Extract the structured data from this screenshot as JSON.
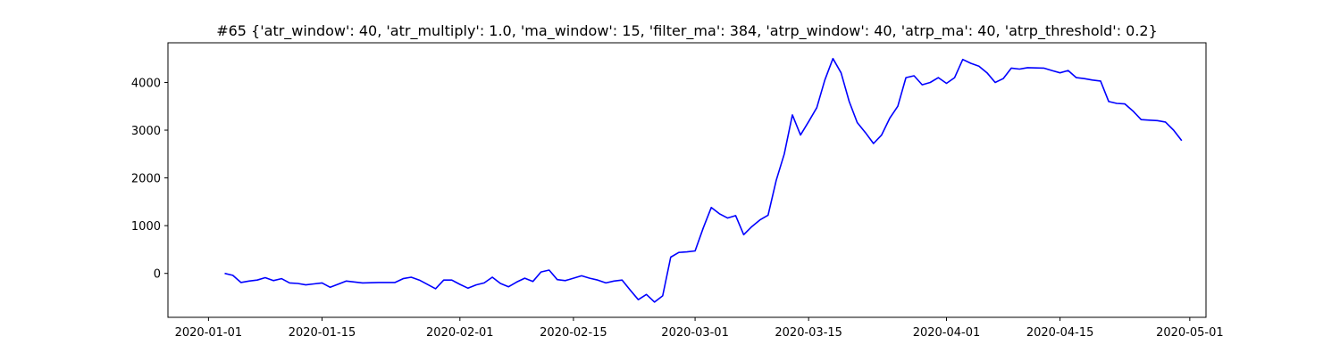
{
  "chart_data": {
    "type": "line",
    "title": "#65 {'atr_window': 40, 'atr_multiply': 1.0, 'ma_window': 15, 'filter_ma': 384, 'atrp_window': 40, 'atrp_ma': 40, 'atrp_threshold': 0.2}",
    "xlabel": "",
    "ylabel": "",
    "xlim": [
      "2019-12-27",
      "2020-05-03"
    ],
    "ylim": [
      -920,
      4830
    ],
    "grid": false,
    "legend": "none",
    "x_ticks": [
      "2020-01-01",
      "2020-01-15",
      "2020-02-01",
      "2020-02-15",
      "2020-03-01",
      "2020-03-15",
      "2020-04-01",
      "2020-04-15",
      "2020-05-01"
    ],
    "y_ticks": [
      0,
      1000,
      2000,
      3000,
      4000
    ],
    "series": [
      {
        "color": "#0000ff",
        "x": [
          "2020-01-03",
          "2020-01-04",
          "2020-01-05",
          "2020-01-06",
          "2020-01-07",
          "2020-01-08",
          "2020-01-09",
          "2020-01-10",
          "2020-01-11",
          "2020-01-12",
          "2020-01-13",
          "2020-01-14",
          "2020-01-15",
          "2020-01-16",
          "2020-01-18",
          "2020-01-20",
          "2020-01-22",
          "2020-01-24",
          "2020-01-25",
          "2020-01-26",
          "2020-01-27",
          "2020-01-29",
          "2020-01-30",
          "2020-01-31",
          "2020-02-01",
          "2020-02-02",
          "2020-02-03",
          "2020-02-04",
          "2020-02-05",
          "2020-02-06",
          "2020-02-07",
          "2020-02-08",
          "2020-02-09",
          "2020-02-10",
          "2020-02-11",
          "2020-02-12",
          "2020-02-13",
          "2020-02-14",
          "2020-02-15",
          "2020-02-16",
          "2020-02-17",
          "2020-02-18",
          "2020-02-19",
          "2020-02-20",
          "2020-02-21",
          "2020-02-22",
          "2020-02-23",
          "2020-02-24",
          "2020-02-25",
          "2020-02-26",
          "2020-02-27",
          "2020-02-28",
          "2020-02-29",
          "2020-03-01",
          "2020-03-02",
          "2020-03-03",
          "2020-03-04",
          "2020-03-05",
          "2020-03-06",
          "2020-03-07",
          "2020-03-08",
          "2020-03-09",
          "2020-03-10",
          "2020-03-11",
          "2020-03-12",
          "2020-03-13",
          "2020-03-14",
          "2020-03-15",
          "2020-03-16",
          "2020-03-17",
          "2020-03-18",
          "2020-03-19",
          "2020-03-20",
          "2020-03-21",
          "2020-03-22",
          "2020-03-23",
          "2020-03-24",
          "2020-03-25",
          "2020-03-26",
          "2020-03-27",
          "2020-03-28",
          "2020-03-29",
          "2020-03-30",
          "2020-03-31",
          "2020-04-01",
          "2020-04-02",
          "2020-04-03",
          "2020-04-04",
          "2020-04-05",
          "2020-04-06",
          "2020-04-07",
          "2020-04-08",
          "2020-04-09",
          "2020-04-10",
          "2020-04-11",
          "2020-04-13",
          "2020-04-14",
          "2020-04-15",
          "2020-04-16",
          "2020-04-17",
          "2020-04-18",
          "2020-04-19",
          "2020-04-20",
          "2020-04-21",
          "2020-04-22",
          "2020-04-23",
          "2020-04-24",
          "2020-04-25",
          "2020-04-26",
          "2020-04-27",
          "2020-04-28",
          "2020-04-29",
          "2020-04-30"
        ],
        "y": [
          0,
          -40,
          -190,
          -160,
          -140,
          -90,
          -150,
          -110,
          -200,
          -210,
          -240,
          -220,
          -200,
          -290,
          -160,
          -200,
          -190,
          -190,
          -110,
          -80,
          -140,
          -320,
          -140,
          -140,
          -230,
          -310,
          -240,
          -200,
          -80,
          -210,
          -280,
          -180,
          -100,
          -170,
          30,
          70,
          -130,
          -150,
          -100,
          -50,
          -100,
          -140,
          -200,
          -160,
          -140,
          -350,
          -550,
          -440,
          -600,
          -470,
          340,
          440,
          450,
          470,
          950,
          1380,
          1250,
          1160,
          1210,
          810,
          980,
          1120,
          1220,
          1950,
          2500,
          3320,
          2900,
          3180,
          3470,
          4050,
          4500,
          4200,
          3600,
          3160,
          2950,
          2720,
          2900,
          3250,
          3500,
          4100,
          4140,
          3950,
          4000,
          4100,
          3980,
          4100,
          4480,
          4400,
          4340,
          4200,
          4000,
          4080,
          4300,
          4280,
          4310,
          4300,
          4250,
          4200,
          4250,
          4100,
          4080,
          4050,
          4030,
          3600,
          3560,
          3550,
          3400,
          3220,
          3210,
          3200,
          3170,
          3000,
          2780
        ]
      }
    ]
  }
}
